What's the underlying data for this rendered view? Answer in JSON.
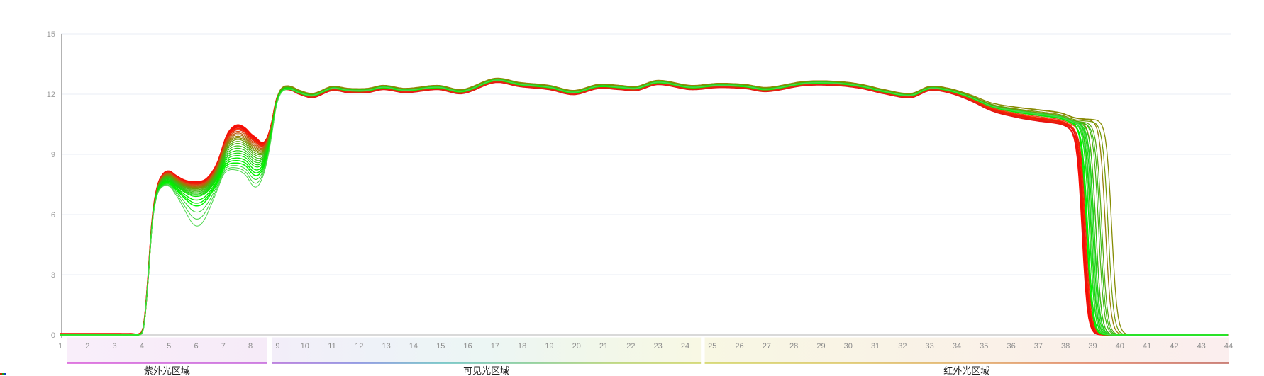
{
  "page": {
    "background": "#ffffff"
  },
  "chart_data": {
    "type": "line",
    "title": "",
    "xlabel": "",
    "ylabel": "",
    "xlim": [
      1,
      44
    ],
    "ylim": [
      0,
      15
    ],
    "x_ticks": [
      1,
      2,
      3,
      4,
      5,
      6,
      7,
      8,
      9,
      10,
      11,
      12,
      13,
      14,
      15,
      16,
      17,
      18,
      19,
      20,
      21,
      22,
      23,
      24,
      25,
      26,
      27,
      28,
      29,
      30,
      31,
      32,
      33,
      34,
      35,
      36,
      37,
      38,
      39,
      40,
      41,
      42,
      43,
      44
    ],
    "y_ticks": [
      0,
      3,
      6,
      9,
      12,
      15
    ],
    "grid": true,
    "legend": "none",
    "axis_color": "#b3b3b3",
    "grid_color": "#e9eef4",
    "tick_label_color": "#9b9b9b",
    "regions": [
      {
        "name": "uv",
        "label": "紫外光区域",
        "x_start": 1.25,
        "x_end": 8.6,
        "bg": [
          "#f9eefa",
          "#f6ebf8"
        ],
        "line": [
          "#c400c4",
          "#a312c9"
        ],
        "label_color": "#222222"
      },
      {
        "name": "visible",
        "label": "可见光区域",
        "x_start": 8.78,
        "x_end": 24.58,
        "bg": [
          "#f3eef9",
          "#eef2f8",
          "#ecf6f4",
          "#f1f7ea",
          "#f8f8e4"
        ],
        "line": [
          "#8818c4",
          "#3a46cc",
          "#0e9c9c",
          "#3aac52",
          "#8cb81e",
          "#b4bc10"
        ],
        "label_color": "#222222"
      },
      {
        "name": "infrared",
        "label": "红外光区域",
        "x_start": 24.72,
        "x_end": 44,
        "bg": [
          "#f8f7e3",
          "#f9f3e6",
          "#faf0e9",
          "#fbeeee"
        ],
        "line": [
          "#b8bc0e",
          "#c8a80c",
          "#d07c08",
          "#cc3004",
          "#9c1404"
        ],
        "label_color": "#222222"
      }
    ],
    "base_curve": {
      "x": [
        1,
        2,
        3,
        3.6,
        3.95,
        4.08,
        4.22,
        4.38,
        4.55,
        4.75,
        5.0,
        5.25,
        5.6,
        5.95,
        6.35,
        6.75,
        7.1,
        7.45,
        7.8,
        8.1,
        8.4,
        8.6,
        8.78,
        8.95,
        9.15,
        9.45,
        9.8,
        10.3,
        11.0,
        11.6,
        12.3,
        12.9,
        13.7,
        14.9,
        15.8,
        17.0,
        17.9,
        19.0,
        19.9,
        20.8,
        21.6,
        22.2,
        23.0,
        24.2,
        25.2,
        26.2,
        27.0,
        28.4,
        29.6,
        30.5,
        31.3,
        32.3,
        33.0,
        33.7,
        34.5,
        35.3,
        36.2,
        37.0,
        37.8,
        38.35,
        39.0,
        40.0,
        42.0,
        44.0
      ],
      "v": [
        0.02,
        0.02,
        0.02,
        0.02,
        0.05,
        0.5,
        2.6,
        5.6,
        7.1,
        7.7,
        7.85,
        7.6,
        7.3,
        7.15,
        7.3,
        8.0,
        9.1,
        9.45,
        9.35,
        8.95,
        8.85,
        9.3,
        10.3,
        11.6,
        12.2,
        12.3,
        12.1,
        11.95,
        12.3,
        12.2,
        12.2,
        12.35,
        12.2,
        12.35,
        12.15,
        12.7,
        12.5,
        12.35,
        12.1,
        12.4,
        12.35,
        12.3,
        12.6,
        12.35,
        12.45,
        12.4,
        12.25,
        12.55,
        12.55,
        12.4,
        12.15,
        11.95,
        12.3,
        12.2,
        11.85,
        11.4,
        11.15,
        11.0,
        10.85,
        10.6,
        10.52,
        10.5,
        10.5,
        10.5
      ]
    },
    "low_spread": {
      "x": [
        4.2,
        4.5,
        4.8,
        5.1,
        5.5,
        6.0,
        6.5,
        6.9,
        7.2,
        7.5,
        7.9,
        8.2,
        8.5,
        8.75,
        9.0,
        9.3,
        9.8,
        10.5
      ],
      "v": [
        0.04,
        0.15,
        0.28,
        0.33,
        0.38,
        0.48,
        0.45,
        0.55,
        0.85,
        1.0,
        0.95,
        0.95,
        0.6,
        0.3,
        0.12,
        0.05,
        0.02,
        0
      ]
    },
    "series": [
      {
        "name": "red-1",
        "color": "#ff0a00",
        "width": 2.0,
        "s": 1.0,
        "p": -0.1,
        "d": -0.2,
        "f": 0.0,
        "dip": 0
      },
      {
        "name": "red-2",
        "color": "#f31207",
        "width": 2.0,
        "s": 0.94,
        "p": -0.07,
        "d": -0.16,
        "f": 0.06,
        "dip": 0
      },
      {
        "name": "red-3",
        "color": "#e61414",
        "width": 1.6,
        "s": 0.88,
        "p": -0.12,
        "d": -0.22,
        "f": 0.03,
        "dip": 0
      },
      {
        "name": "red-4",
        "color": "#ff2200",
        "width": 1.6,
        "s": 0.82,
        "p": -0.05,
        "d": -0.13,
        "f": 0.1,
        "dip": 0
      },
      {
        "name": "red-5",
        "color": "#df2a10",
        "width": 1.4,
        "s": 0.76,
        "p": -0.09,
        "d": -0.18,
        "f": 0.14,
        "dip": 0
      },
      {
        "name": "orange-1",
        "color": "#d84f12",
        "width": 1.3,
        "s": 0.68,
        "p": -0.03,
        "d": -0.09,
        "f": 0.2,
        "dip": 0
      },
      {
        "name": "orange-2",
        "color": "#c25c12",
        "width": 1.3,
        "s": 0.6,
        "p": -0.01,
        "d": -0.05,
        "f": 0.32,
        "dip": 0
      },
      {
        "name": "brown-1",
        "color": "#aa6a0e",
        "width": 1.3,
        "s": 0.52,
        "p": 0.06,
        "d": 0.02,
        "f": 0.5,
        "dip": 0
      },
      {
        "name": "olive-1",
        "color": "#978009",
        "width": 1.3,
        "s": 0.44,
        "p": 0.09,
        "d": 0.12,
        "f": 0.85,
        "dip": 0
      },
      {
        "name": "olive-2",
        "color": "#868c03",
        "width": 1.3,
        "s": 0.36,
        "p": 0.07,
        "d": 0.16,
        "f": 1.08,
        "dip": 0
      },
      {
        "name": "olive-3",
        "color": "#6f9b04",
        "width": 1.2,
        "s": 0.28,
        "p": 0.04,
        "d": 0.09,
        "f": 0.95,
        "dip": 0
      },
      {
        "name": "green-1",
        "color": "#58a90e",
        "width": 1.2,
        "s": 0.18,
        "p": 0.02,
        "d": 0.05,
        "f": 0.72,
        "dip": 0
      },
      {
        "name": "green-2",
        "color": "#47b311",
        "width": 1.2,
        "s": 0.08,
        "p": 0.03,
        "d": 0.03,
        "f": 0.6,
        "dip": 0
      },
      {
        "name": "green-3",
        "color": "#38bd14",
        "width": 1.2,
        "s": -0.04,
        "p": 0.01,
        "d": 0.0,
        "f": 0.66,
        "dip": 0
      },
      {
        "name": "green-4",
        "color": "#2ac617",
        "width": 1.2,
        "s": -0.16,
        "p": -0.01,
        "d": 0.02,
        "f": 0.5,
        "dip": 0
      },
      {
        "name": "green-5",
        "color": "#1ed00f",
        "width": 1.2,
        "s": -0.28,
        "p": 0.02,
        "d": -0.02,
        "f": 0.44,
        "dip": 0
      },
      {
        "name": "green-6",
        "color": "#13d908",
        "width": 1.2,
        "s": -0.4,
        "p": -0.02,
        "d": 0.04,
        "f": 0.38,
        "dip": 0
      },
      {
        "name": "green-7",
        "color": "#0ae103",
        "width": 1.2,
        "s": -0.52,
        "p": 0.01,
        "d": -0.04,
        "f": 0.32,
        "dip": 0
      },
      {
        "name": "green-8",
        "color": "#03e900",
        "width": 1.4,
        "s": -0.64,
        "p": -0.01,
        "d": 0.01,
        "f": 0.26,
        "dip": 0.12
      },
      {
        "name": "green-9",
        "color": "#00ef00",
        "width": 1.4,
        "s": -0.76,
        "p": 0.0,
        "d": -0.06,
        "f": 0.2,
        "dip": 0.22
      },
      {
        "name": "green-10",
        "color": "#00f600",
        "width": 1.5,
        "s": -0.88,
        "p": -0.03,
        "d": 0.02,
        "f": 0.16,
        "dip": 0.3
      },
      {
        "name": "green-thin-1",
        "color": "#2bd42b",
        "width": 1.0,
        "s": -1.0,
        "p": 0.01,
        "d": -0.03,
        "f": 0.42,
        "dip": 0.55
      },
      {
        "name": "green-thin-2",
        "color": "#3dd33d",
        "width": 1.0,
        "s": -1.1,
        "p": -0.01,
        "d": 0.05,
        "f": 0.34,
        "dip": 0.85
      },
      {
        "name": "green-outlier",
        "color": "#4fd84f",
        "width": 1.0,
        "s": -1.2,
        "p": 0.0,
        "d": 0.0,
        "f": 0.28,
        "dip": 1.15
      }
    ]
  },
  "artifact": {
    "colors": [
      "#c03000",
      "#18a018",
      "#1040c0"
    ]
  }
}
